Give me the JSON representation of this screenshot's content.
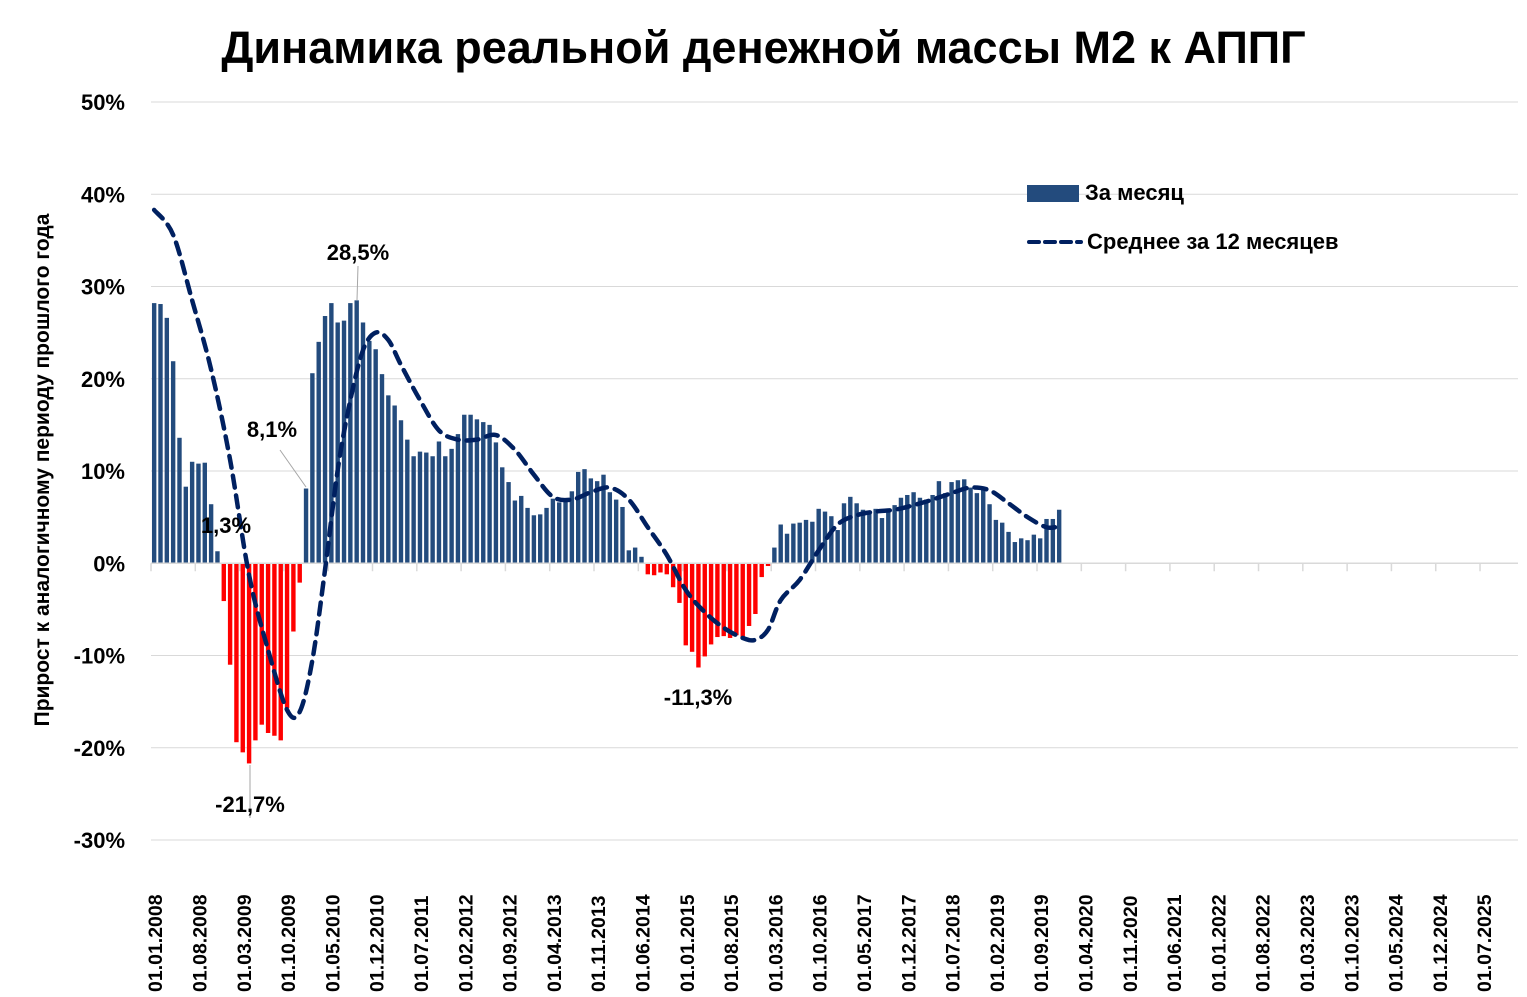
{
  "chart_data": {
    "type": "bar",
    "title": "Динамика реальной денежной массы М2 к АППГ",
    "ylabel": "Прирост к аналогичному периоду прошлого года",
    "xlabel": "",
    "ylim": [
      -30,
      50
    ],
    "y_ticks": [
      "50%",
      "40%",
      "30%",
      "20%",
      "10%",
      "0%",
      "-10%",
      "-20%",
      "-30%"
    ],
    "y_tick_values": [
      50,
      40,
      30,
      20,
      10,
      0,
      -10,
      -20,
      -30
    ],
    "x_range": [
      "01.01.2008",
      "01.12.2025"
    ],
    "x_tick_labels": [
      "01.01.2008",
      "01.08.2008",
      "01.03.2009",
      "01.10.2009",
      "01.05.2010",
      "01.12.2010",
      "01.07.2011",
      "01.02.2012",
      "01.09.2012",
      "01.04.2013",
      "01.11.2013",
      "01.06.2014",
      "01.01.2015",
      "01.08.2015",
      "01.03.2016",
      "01.10.2016",
      "01.05.2017",
      "01.12.2017",
      "01.07.2018",
      "01.02.2019",
      "01.09.2019",
      "01.04.2020",
      "01.11.2020",
      "01.06.2021",
      "01.01.2022",
      "01.08.2022",
      "01.03.2023",
      "01.10.2023",
      "01.05.2024",
      "01.12.2024",
      "01.07.2025"
    ],
    "grid": true,
    "legend_position": "top-right",
    "colors": {
      "positive": "#234B7D",
      "negative": "#FF0000",
      "line": "#002060",
      "grid": "#D9D9D9"
    },
    "series": [
      {
        "name": "За месяц",
        "type": "bar",
        "values_by_year": {
          "2008": [
            28.2,
            28.1,
            26.6,
            21.9,
            13.6,
            8.3,
            11.0,
            10.8,
            10.9,
            6.4,
            1.3,
            -4.1
          ],
          "2009": [
            -11.0,
            -19.4,
            -20.5,
            -21.7,
            -19.2,
            -17.5,
            -18.4,
            -18.7,
            -19.2,
            -15.7,
            -7.4,
            -2.1
          ],
          "2010": [
            8.1,
            20.6,
            24.0,
            26.8,
            28.2,
            26.1,
            26.3,
            28.2,
            28.5,
            26.1,
            24.1,
            23.2
          ],
          "2011": [
            20.5,
            18.2,
            17.1,
            15.5,
            13.4,
            11.6,
            12.1,
            12.0,
            11.6,
            13.2,
            11.6,
            12.4
          ],
          "2012": [
            14.0,
            16.1,
            16.1,
            15.6,
            15.3,
            15.0,
            13.1,
            10.4,
            8.8,
            6.8,
            7.3,
            6.0
          ],
          "2013": [
            5.2,
            5.3,
            6.0,
            7.0,
            6.6,
            6.9,
            7.8,
            9.9,
            10.2,
            9.2,
            8.9,
            9.6
          ],
          "2014": [
            7.7,
            6.9,
            6.1,
            1.4,
            1.7,
            0.7,
            -1.2,
            -1.3,
            -1.0,
            -1.2,
            -2.6,
            -4.3
          ],
          "2015": [
            -8.9,
            -9.6,
            -11.3,
            -10.1,
            -8.8,
            -8.0,
            -7.9,
            -8.1,
            -7.8,
            -8.0,
            -6.8,
            -5.5
          ],
          "2016": [
            -1.5,
            -0.3,
            1.7,
            4.2,
            3.2,
            4.3,
            4.4,
            4.7,
            4.5,
            5.9,
            5.6,
            5.1
          ],
          "2017": [
            3.6,
            6.5,
            7.2,
            6.5,
            5.8,
            5.6,
            5.9,
            4.9,
            5.6,
            6.3,
            7.1,
            7.4
          ],
          "2018": [
            7.7,
            7.1,
            6.9,
            7.4,
            8.9,
            7.6,
            8.8,
            9.0,
            9.1,
            8.2,
            7.6,
            8.1
          ],
          "2019": [
            6.4,
            4.7,
            4.4,
            3.4,
            2.3,
            2.7,
            2.5,
            3.1,
            2.7,
            4.8,
            4.8,
            5.8
          ]
        }
      },
      {
        "name": "Среднее за 12 месяцев",
        "type": "line",
        "style": "dashed",
        "points": [
          [
            "01.01.2008",
            38.3
          ],
          [
            "01.04.2008",
            35.6
          ],
          [
            "01.07.2008",
            28.5
          ],
          [
            "01.10.2008",
            21.0
          ],
          [
            "01.01.2009",
            11.2
          ],
          [
            "01.04.2009",
            -1.3
          ],
          [
            "01.07.2009",
            -9.4
          ],
          [
            "01.10.2009",
            -15.9
          ],
          [
            "01.12.2009",
            -16.1
          ],
          [
            "01.02.2010",
            -10.5
          ],
          [
            "01.04.2010",
            -0.7
          ],
          [
            "01.06.2010",
            10.1
          ],
          [
            "01.08.2010",
            17.7
          ],
          [
            "01.10.2010",
            23.1
          ],
          [
            "01.12.2010",
            25.0
          ],
          [
            "01.02.2011",
            24.2
          ],
          [
            "01.04.2011",
            21.5
          ],
          [
            "01.07.2011",
            17.7
          ],
          [
            "01.10.2011",
            14.4
          ],
          [
            "01.01.2012",
            13.4
          ],
          [
            "01.04.2012",
            13.4
          ],
          [
            "01.07.2012",
            13.9
          ],
          [
            "01.10.2012",
            12.3
          ],
          [
            "01.01.2013",
            9.6
          ],
          [
            "01.04.2013",
            7.2
          ],
          [
            "01.07.2013",
            6.9
          ],
          [
            "01.10.2013",
            7.7
          ],
          [
            "01.01.2014",
            8.2
          ],
          [
            "01.04.2014",
            6.9
          ],
          [
            "01.07.2014",
            3.9
          ],
          [
            "01.10.2014",
            0.9
          ],
          [
            "01.01.2015",
            -2.9
          ],
          [
            "01.04.2015",
            -5.3
          ],
          [
            "01.07.2015",
            -7.0
          ],
          [
            "01.10.2015",
            -8.1
          ],
          [
            "01.12.2015",
            -8.3
          ],
          [
            "01.02.2016",
            -7.2
          ],
          [
            "01.04.2016",
            -4.0
          ],
          [
            "01.07.2016",
            -1.8
          ],
          [
            "01.10.2016",
            1.4
          ],
          [
            "01.01.2017",
            4.2
          ],
          [
            "01.04.2017",
            5.2
          ],
          [
            "01.07.2017",
            5.6
          ],
          [
            "01.10.2017",
            5.8
          ],
          [
            "01.01.2018",
            6.3
          ],
          [
            "01.04.2018",
            6.9
          ],
          [
            "01.07.2018",
            7.6
          ],
          [
            "01.10.2018",
            8.2
          ],
          [
            "01.01.2019",
            7.9
          ],
          [
            "01.04.2019",
            6.5
          ],
          [
            "01.07.2019",
            5.0
          ],
          [
            "01.10.2019",
            3.9
          ],
          [
            "01.12.2019",
            4.0
          ]
        ]
      }
    ],
    "annotations": [
      {
        "text": "28,5%",
        "date": "01.09.2010",
        "value": 28.5
      },
      {
        "text": "8,1%",
        "date": "01.01.2010",
        "value": 8.1
      },
      {
        "text": "1,3%",
        "date": "01.11.2008",
        "value": 1.3
      },
      {
        "text": "-21,7%",
        "date": "01.04.2009",
        "value": -21.7
      },
      {
        "text": "-11,3%",
        "date": "01.03.2015",
        "value": -11.3
      }
    ]
  }
}
